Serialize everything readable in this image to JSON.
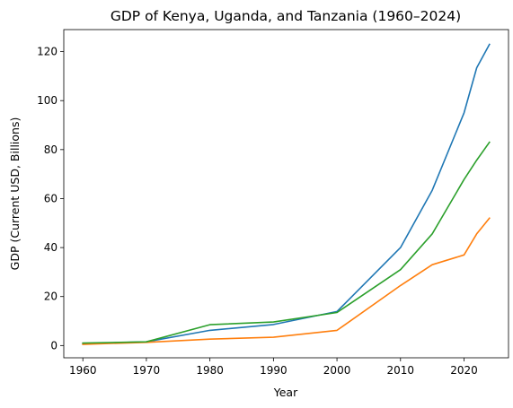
{
  "chart_data": {
    "type": "line",
    "title": "GDP of Kenya, Uganda, and Tanzania (1960–2024)",
    "xlabel": "Year",
    "ylabel": "GDP (Current USD, Billions)",
    "xlim": [
      1957,
      2027
    ],
    "ylim": [
      -5,
      129
    ],
    "xticks": [
      1960,
      1970,
      1980,
      1990,
      2000,
      2010,
      2020
    ],
    "yticks": [
      0,
      20,
      40,
      60,
      80,
      100,
      120
    ],
    "grid": false,
    "legend": "none",
    "series": [
      {
        "color": "#1f77b4",
        "x": [
          1960,
          1970,
          1980,
          1990,
          2000,
          2010,
          2015,
          2020,
          2022,
          2024
        ],
        "y": [
          0.8,
          1.5,
          6.2,
          8.6,
          13.9,
          40.0,
          63.4,
          95.0,
          113.4,
          123.0
        ]
      },
      {
        "color": "#ff7f0e",
        "x": [
          1960,
          1970,
          1980,
          1990,
          2000,
          2010,
          2015,
          2020,
          2022,
          2024
        ],
        "y": [
          0.5,
          1.3,
          2.6,
          3.4,
          6.2,
          24.5,
          33.0,
          37.0,
          45.6,
          52.0
        ]
      },
      {
        "color": "#2ca02c",
        "x": [
          1960,
          1970,
          1980,
          1990,
          2000,
          2010,
          2015,
          2020,
          2022,
          2024
        ],
        "y": [
          1.0,
          1.5,
          8.5,
          9.6,
          13.5,
          31.0,
          45.6,
          67.8,
          75.7,
          83.0
        ]
      }
    ]
  }
}
